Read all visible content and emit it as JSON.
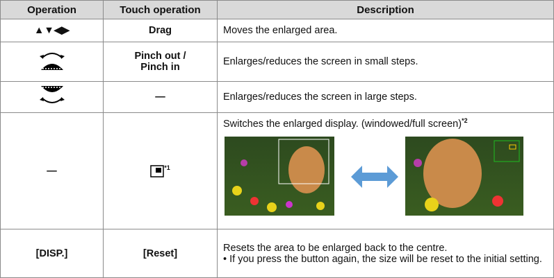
{
  "table": {
    "header": [
      "Operation",
      "Touch operation",
      "Description"
    ],
    "rows": [
      {
        "operation": "▲▼◀▶",
        "touch": [
          "Drag"
        ],
        "description": [
          "Moves the enlarged area."
        ]
      },
      {
        "operation": null,
        "touch": [
          "Pinch out /",
          "Pinch in"
        ],
        "description": [
          "Enlarges/reduces the screen in small steps."
        ]
      },
      {
        "operation": null,
        "touch": [
          "—"
        ],
        "description": [
          "Enlarges/reduces the screen in large steps."
        ]
      },
      {
        "operation": "—",
        "touch_note": "*1",
        "description": [
          "Switches the enlarged display. (windowed/full screen)"
        ],
        "description_note": "*2"
      },
      {
        "operation": "[DISP.]",
        "touch": [
          "[Reset]"
        ],
        "description": [
          "Resets the area to be enlarged back to the centre.",
          "• If you press the button again, the size will be reset to the initial setting."
        ]
      }
    ]
  }
}
